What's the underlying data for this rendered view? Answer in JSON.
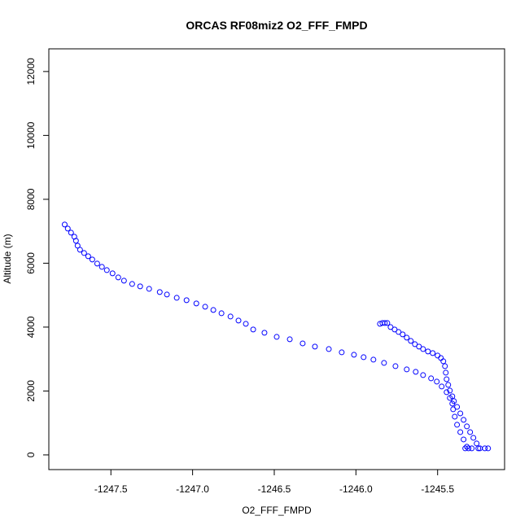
{
  "chart_data": {
    "type": "scatter",
    "title": "ORCAS RF08miz2 O2_FFF_FMPD",
    "x_label": "O2_FFF_FMPD",
    "y_label": "Altitude (m)",
    "xlim": [
      -1247.88,
      -1245.09
    ],
    "ylim": [
      -460,
      12710
    ],
    "xticks": [
      -1247.5,
      {
        "value": -1247.0,
        "label": "-1247.0"
      },
      -1246.5,
      {
        "value": -1246.0,
        "label": "-1246.0"
      },
      -1245.5
    ],
    "yticks": [
      0,
      2000,
      4000,
      6000,
      8000,
      10000,
      12000
    ],
    "series": [
      {
        "name": "O2_FFF_FMPD",
        "color": "#0000ff",
        "x": [
          -1247.783,
          -1247.764,
          -1247.744,
          -1247.724,
          -1247.714,
          -1247.704,
          -1247.689,
          -1247.664,
          -1247.639,
          -1247.614,
          -1247.584,
          -1247.555,
          -1247.525,
          -1247.49,
          -1247.455,
          -1247.42,
          -1247.37,
          -1247.321,
          -1247.266,
          -1247.201,
          -1247.157,
          -1247.097,
          -1247.037,
          -1246.977,
          -1246.923,
          -1246.873,
          -1246.823,
          -1246.768,
          -1246.719,
          -1246.674,
          -1246.629,
          -1246.56,
          -1246.485,
          -1246.405,
          -1246.326,
          -1246.251,
          -1246.166,
          -1246.087,
          -1246.012,
          -1245.953,
          -1245.893,
          -1245.828,
          -1245.758,
          -1245.689,
          -1245.634,
          -1245.589,
          -1245.54,
          -1245.505,
          -1245.475,
          -1245.445,
          -1245.425,
          -1245.41,
          -1245.405,
          -1245.395,
          -1245.381,
          -1245.361,
          -1245.341,
          -1245.321,
          -1245.311,
          -1245.853,
          -1245.838,
          -1245.823,
          -1245.808,
          -1245.788,
          -1245.763,
          -1245.739,
          -1245.714,
          -1245.689,
          -1245.664,
          -1245.639,
          -1245.614,
          -1245.589,
          -1245.559,
          -1245.53,
          -1245.5,
          -1245.48,
          -1245.465,
          -1245.455,
          -1245.45,
          -1245.445,
          -1245.435,
          -1245.425,
          -1245.41,
          -1245.4,
          -1245.381,
          -1245.361,
          -1245.341,
          -1245.321,
          -1245.301,
          -1245.281,
          -1245.261,
          -1245.241,
          -1245.331,
          -1245.291,
          -1245.251,
          -1245.211,
          -1245.191
        ],
        "values": [
          7210,
          7083,
          6955,
          6828,
          6701,
          6548,
          6420,
          6318,
          6217,
          6115,
          5987,
          5885,
          5783,
          5682,
          5554,
          5452,
          5350,
          5274,
          5197,
          5096,
          5019,
          4917,
          4841,
          4739,
          4637,
          4535,
          4433,
          4331,
          4204,
          4102,
          3924,
          3822,
          3694,
          3618,
          3490,
          3389,
          3312,
          3210,
          3134,
          3057,
          2981,
          2879,
          2777,
          2675,
          2599,
          2497,
          2395,
          2293,
          2140,
          1962,
          1783,
          1605,
          1427,
          1197,
          943,
          713,
          484,
          255,
          204,
          4102,
          4127,
          4127,
          4127,
          4000,
          3924,
          3847,
          3771,
          3669,
          3567,
          3465,
          3389,
          3312,
          3236,
          3185,
          3108,
          3032,
          2930,
          2777,
          2573,
          2369,
          2191,
          2013,
          1834,
          1682,
          1503,
          1299,
          1096,
          892,
          713,
          535,
          357,
          204,
          204,
          204,
          204,
          204,
          204
        ]
      }
    ]
  }
}
